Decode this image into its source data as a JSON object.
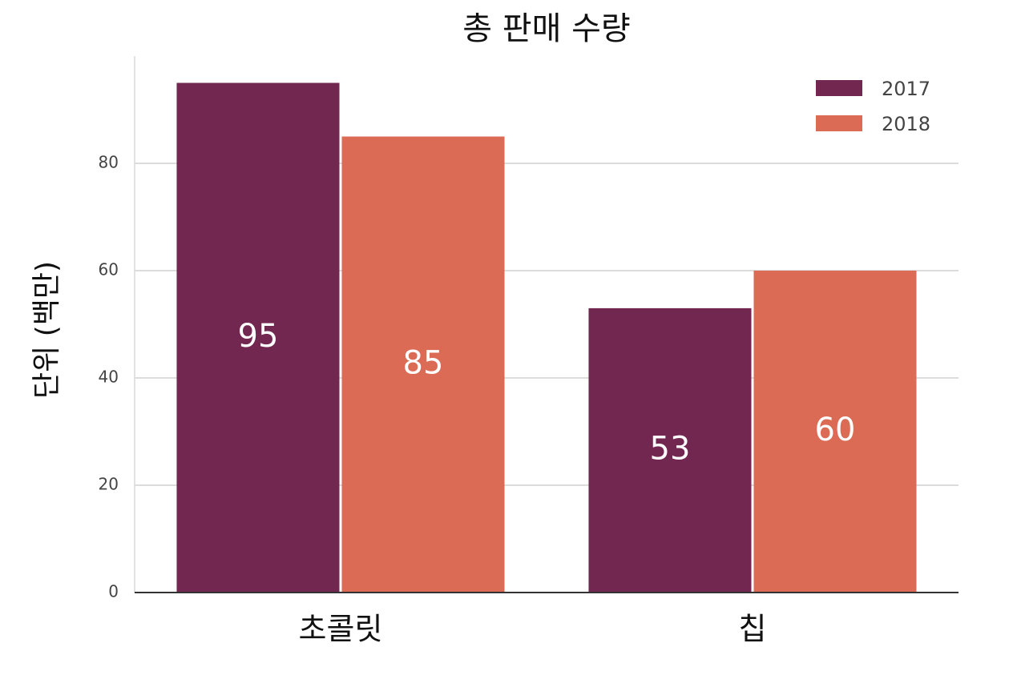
{
  "chart_data": {
    "type": "bar",
    "title": "총 판매 수량",
    "y_label": "단위 (백만)",
    "categories": [
      "초콜릿",
      "칩"
    ],
    "series": [
      {
        "name": "2017",
        "color": "#722750",
        "values": [
          95,
          53
        ]
      },
      {
        "name": "2018",
        "color": "#db6b55",
        "values": [
          85,
          60
        ]
      }
    ],
    "ylim": [
      0,
      100
    ],
    "yticks": [
      0,
      20,
      40,
      60,
      80
    ],
    "grid": true,
    "legend": "top-right"
  }
}
